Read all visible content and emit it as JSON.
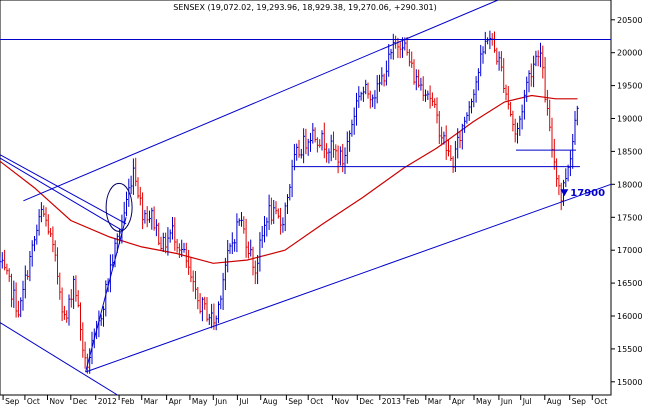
{
  "chart_data": {
    "type": "line",
    "title": "SENSEX (19,072.02, 19,293.96, 18,929.38, 19,270.06, +290.301)",
    "xlabel": "",
    "ylabel": "",
    "ylim": [
      14800,
      20800
    ],
    "x_range": [
      "2011-09-01",
      "2013-10-25"
    ],
    "grid": false,
    "colors": {
      "price_up": "#0000cc",
      "price_down": "#dd0000",
      "moving_average": "#cc0000",
      "trendline": "#0000cc",
      "frame": "#000000"
    },
    "x_tick_labels": [
      {
        "label": "Sep",
        "date": "2011-09-05"
      },
      {
        "label": "Oct",
        "date": "2011-10-03"
      },
      {
        "label": "Nov",
        "date": "2011-11-01"
      },
      {
        "label": "Dec",
        "date": "2011-12-01"
      },
      {
        "label": "2012",
        "date": "2012-01-02"
      },
      {
        "label": "Feb",
        "date": "2012-02-01"
      },
      {
        "label": "Mar",
        "date": "2012-03-01"
      },
      {
        "label": "Apr",
        "date": "2012-04-02"
      },
      {
        "label": "May",
        "date": "2012-05-02"
      },
      {
        "label": "Jun",
        "date": "2012-06-01"
      },
      {
        "label": "Jul",
        "date": "2012-07-02"
      },
      {
        "label": "Aug",
        "date": "2012-08-01"
      },
      {
        "label": "Sep",
        "date": "2012-09-03"
      },
      {
        "label": "Oct",
        "date": "2012-10-01"
      },
      {
        "label": "Nov",
        "date": "2012-11-01"
      },
      {
        "label": "Dec",
        "date": "2012-12-03"
      },
      {
        "label": "2013",
        "date": "2013-01-01"
      },
      {
        "label": "Feb",
        "date": "2013-02-01"
      },
      {
        "label": "Mar",
        "date": "2013-03-01"
      },
      {
        "label": "Apr",
        "date": "2013-04-01"
      },
      {
        "label": "May",
        "date": "2013-05-02"
      },
      {
        "label": "Jun",
        "date": "2013-06-03"
      },
      {
        "label": "Jul",
        "date": "2013-07-01"
      },
      {
        "label": "Aug",
        "date": "2013-08-01"
      },
      {
        "label": "Sep",
        "date": "2013-09-02"
      },
      {
        "label": "Oct",
        "date": "2013-10-01"
      }
    ],
    "y_ticks": [
      15000,
      15500,
      16000,
      16500,
      17000,
      17500,
      18000,
      18500,
      19000,
      19500,
      20000,
      20500
    ],
    "series": [
      {
        "kind": "price",
        "points": [
          {
            "x": "2011-09-01",
            "y": 16800
          },
          {
            "x": "2011-09-12",
            "y": 16500
          },
          {
            "x": "2011-09-26",
            "y": 16050
          },
          {
            "x": "2011-10-06",
            "y": 16700
          },
          {
            "x": "2011-10-25",
            "y": 17600
          },
          {
            "x": "2011-11-03",
            "y": 17300
          },
          {
            "x": "2011-11-16",
            "y": 16500
          },
          {
            "x": "2011-11-24",
            "y": 15850
          },
          {
            "x": "2011-12-05",
            "y": 16600
          },
          {
            "x": "2011-12-20",
            "y": 15200
          },
          {
            "x": "2012-01-05",
            "y": 15800
          },
          {
            "x": "2012-01-20",
            "y": 16700
          },
          {
            "x": "2012-02-08",
            "y": 17600
          },
          {
            "x": "2012-02-20",
            "y": 18300
          },
          {
            "x": "2012-03-01",
            "y": 17600
          },
          {
            "x": "2012-03-15",
            "y": 17500
          },
          {
            "x": "2012-03-28",
            "y": 17050
          },
          {
            "x": "2012-04-10",
            "y": 17300
          },
          {
            "x": "2012-04-25",
            "y": 16900
          },
          {
            "x": "2012-05-10",
            "y": 16250
          },
          {
            "x": "2012-06-04",
            "y": 15900
          },
          {
            "x": "2012-06-15",
            "y": 16700
          },
          {
            "x": "2012-07-05",
            "y": 17500
          },
          {
            "x": "2012-07-25",
            "y": 16700
          },
          {
            "x": "2012-08-10",
            "y": 17600
          },
          {
            "x": "2012-08-28",
            "y": 17400
          },
          {
            "x": "2012-09-14",
            "y": 18400
          },
          {
            "x": "2012-10-05",
            "y": 18800
          },
          {
            "x": "2012-10-25",
            "y": 18600
          },
          {
            "x": "2012-11-15",
            "y": 18350
          },
          {
            "x": "2012-12-05",
            "y": 19400
          },
          {
            "x": "2012-12-28",
            "y": 19400
          },
          {
            "x": "2013-01-20",
            "y": 20100
          },
          {
            "x": "2013-01-30",
            "y": 20200
          },
          {
            "x": "2013-02-15",
            "y": 19600
          },
          {
            "x": "2013-03-05",
            "y": 19400
          },
          {
            "x": "2013-03-20",
            "y": 18800
          },
          {
            "x": "2013-04-04",
            "y": 18300
          },
          {
            "x": "2013-04-18",
            "y": 18900
          },
          {
            "x": "2013-05-05",
            "y": 19600
          },
          {
            "x": "2013-05-20",
            "y": 20300
          },
          {
            "x": "2013-06-05",
            "y": 19800
          },
          {
            "x": "2013-06-25",
            "y": 18700
          },
          {
            "x": "2013-07-10",
            "y": 19600
          },
          {
            "x": "2013-07-25",
            "y": 20100
          },
          {
            "x": "2013-08-08",
            "y": 18700
          },
          {
            "x": "2013-08-22",
            "y": 17800
          },
          {
            "x": "2013-09-05",
            "y": 18600
          },
          {
            "x": "2013-09-12",
            "y": 19300
          }
        ]
      },
      {
        "kind": "moving_average",
        "points": [
          {
            "x": "2011-09-01",
            "y": 18350
          },
          {
            "x": "2011-10-15",
            "y": 17950
          },
          {
            "x": "2011-12-01",
            "y": 17450
          },
          {
            "x": "2012-01-20",
            "y": 17200
          },
          {
            "x": "2012-03-01",
            "y": 17050
          },
          {
            "x": "2012-04-15",
            "y": 16950
          },
          {
            "x": "2012-06-01",
            "y": 16800
          },
          {
            "x": "2012-07-15",
            "y": 16850
          },
          {
            "x": "2012-09-01",
            "y": 17000
          },
          {
            "x": "2012-10-20",
            "y": 17400
          },
          {
            "x": "2012-12-10",
            "y": 17800
          },
          {
            "x": "2013-02-01",
            "y": 18250
          },
          {
            "x": "2013-03-15",
            "y": 18550
          },
          {
            "x": "2013-05-01",
            "y": 18950
          },
          {
            "x": "2013-06-10",
            "y": 19250
          },
          {
            "x": "2013-07-15",
            "y": 19350
          },
          {
            "x": "2013-08-15",
            "y": 19300
          },
          {
            "x": "2013-09-12",
            "y": 19300
          }
        ]
      }
    ],
    "trendlines": [
      {
        "from": {
          "x": "2011-10-01",
          "y": 17750
        },
        "to": {
          "x": "2013-08-01",
          "y": 21100
        }
      },
      {
        "from": {
          "x": "2011-12-20",
          "y": 15150
        },
        "to": {
          "x": "2013-10-25",
          "y": 18000
        }
      },
      {
        "from": {
          "x": "2011-09-01",
          "y": 20200
        },
        "to": {
          "x": "2013-10-25",
          "y": 20200
        }
      },
      {
        "from": {
          "x": "2012-09-14",
          "y": 18270
        },
        "to": {
          "x": "2013-09-15",
          "y": 18270
        }
      },
      {
        "from": {
          "x": "2013-06-25",
          "y": 18520
        },
        "to": {
          "x": "2013-09-10",
          "y": 18520
        }
      },
      {
        "from": {
          "x": "2011-09-01",
          "y": 18450
        },
        "to": {
          "x": "2012-02-10",
          "y": 17400
        }
      },
      {
        "from": {
          "x": "2011-09-01",
          "y": 18400
        },
        "to": {
          "x": "2012-02-05",
          "y": 17300
        }
      },
      {
        "from": {
          "x": "2011-12-20",
          "y": 15150
        },
        "to": {
          "x": "2012-02-10",
          "y": 17500
        }
      },
      {
        "from": {
          "x": "2011-09-01",
          "y": 15900
        },
        "to": {
          "x": "2012-01-30",
          "y": 14800
        }
      }
    ],
    "annotations": [
      {
        "text": "17900",
        "x": "2013-08-26",
        "y": 17850
      }
    ]
  }
}
